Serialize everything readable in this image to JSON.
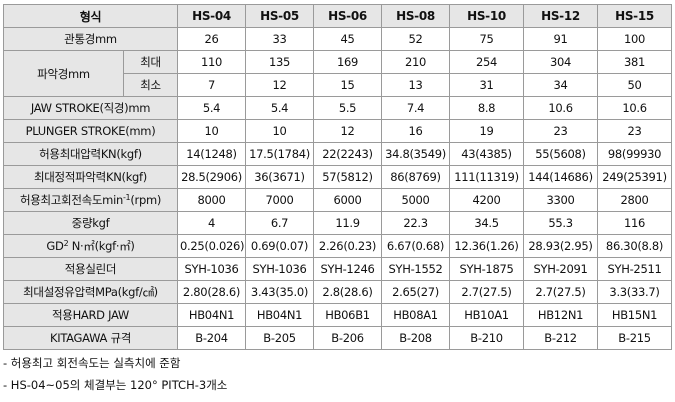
{
  "header": {
    "title": "형식",
    "models": [
      "HS-04",
      "HS-05",
      "HS-06",
      "HS-08",
      "HS-10",
      "HS-12",
      "HS-15"
    ]
  },
  "rows": {
    "bore": {
      "label": "관통경mm",
      "values": [
        "26",
        "33",
        "45",
        "52",
        "75",
        "91",
        "100"
      ]
    },
    "grip": {
      "label": "파악경mm",
      "max": {
        "label": "최대",
        "values": [
          "110",
          "135",
          "169",
          "210",
          "254",
          "304",
          "381"
        ]
      },
      "min": {
        "label": "최소",
        "values": [
          "7",
          "12",
          "15",
          "13",
          "31",
          "34",
          "50"
        ]
      }
    },
    "jaw_stroke": {
      "label": "JAW STROKE(직경)mm",
      "values": [
        "5.4",
        "5.4",
        "5.5",
        "7.4",
        "8.8",
        "10.6",
        "10.6"
      ]
    },
    "plunger_stroke": {
      "label": "PLUNGER STROKE(mm)",
      "values": [
        "10",
        "10",
        "12",
        "16",
        "19",
        "23",
        "23"
      ]
    },
    "draw_force": {
      "label": "허용최대압력KN(kgf)",
      "values": [
        "14(1248)",
        "17.5(1784)",
        "22(2243)",
        "34.8(3549)",
        "43(4385)",
        "55(5608)",
        "98(99930"
      ]
    },
    "grip_force": {
      "label": "최대정적파악력KN(kgf)",
      "values": [
        "28.5(2906)",
        "36(3671)",
        "57(5812)",
        "86(8769)",
        "111(11319)",
        "144(14686)",
        "249(25391)"
      ]
    },
    "speed": {
      "label_pre": "허용최고회전속도min",
      "label_sup": "-1",
      "label_post": "(rpm)",
      "values": [
        "8000",
        "7000",
        "6000",
        "5000",
        "4200",
        "3300",
        "2800"
      ]
    },
    "weight": {
      "label": "중량kgf",
      "values": [
        "4",
        "6.7",
        "11.9",
        "22.3",
        "34.5",
        "55.3",
        "116"
      ]
    },
    "gd2": {
      "label_pre": "GD",
      "label_sup": "2",
      "label_post": " N·㎡(kgf·㎡)",
      "values": [
        "0.25(0.026)",
        "0.69(0.07)",
        "2.26(0.23)",
        "6.67(0.68)",
        "12.36(1.26)",
        "28.93(2.95)",
        "86.30(8.8)"
      ]
    },
    "cylinder": {
      "label": "적용실린더",
      "values": [
        "SYH-1036",
        "SYH-1036",
        "SYH-1246",
        "SYH-1552",
        "SYH-1875",
        "SYH-2091",
        "SYH-2511"
      ]
    },
    "pressure": {
      "label": "최대설정유압력MPa(kgf/㎠)",
      "values": [
        "2.80(28.6)",
        "3.43(35.0)",
        "2.8(28.6)",
        "2.65(27)",
        "2.7(27.5)",
        "2.7(27.5)",
        "3.3(33.7)"
      ]
    },
    "hard_jaw": {
      "label": "적용HARD JAW",
      "values": [
        "HB04N1",
        "HB04N1",
        "HB06B1",
        "HB08A1",
        "HB10A1",
        "HB12N1",
        "HB15N1"
      ]
    },
    "kitagawa": {
      "label": "KITAGAWA 규격",
      "values": [
        "B-204",
        "B-205",
        "B-206",
        "B-208",
        "B-210",
        "B-212",
        "B-215"
      ]
    }
  },
  "notes": [
    "- 허용최고 회전속도는 실측치에 준함",
    "- HS-04~05의 체결부는 120° PITCH-3개소"
  ]
}
